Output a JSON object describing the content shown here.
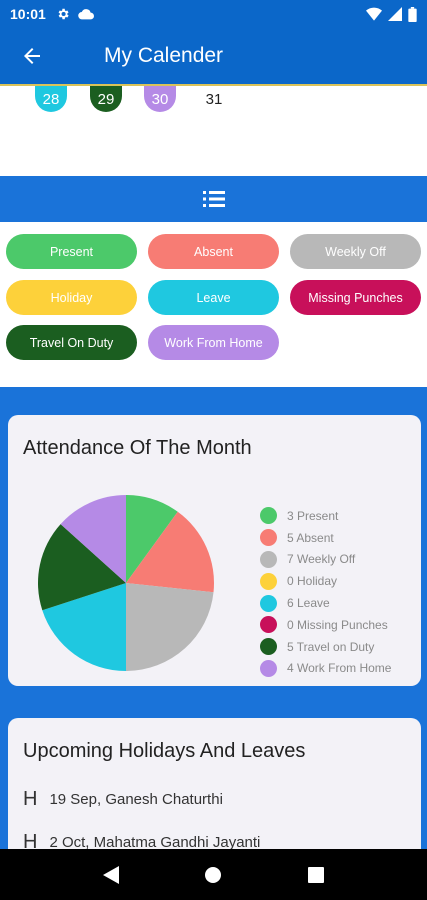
{
  "status": {
    "time": "10:01"
  },
  "header": {
    "title": "My Calender"
  },
  "calendar": {
    "days": [
      {
        "label": "28",
        "color": "#1fc8e0"
      },
      {
        "label": "29",
        "color": "#1b5e20"
      },
      {
        "label": "30",
        "color": "#b58ae6"
      },
      {
        "label": "31",
        "color": ""
      }
    ]
  },
  "legend": {
    "chips": [
      {
        "label": "Present",
        "color": "#4cc96a"
      },
      {
        "label": "Absent",
        "color": "#f77c74"
      },
      {
        "label": "Weekly Off",
        "color": "#b8b8b8"
      },
      {
        "label": "Holiday",
        "color": "#fdd13a"
      },
      {
        "label": "Leave",
        "color": "#1fc8e0"
      },
      {
        "label": "Missing Punches",
        "color": "#c8105a"
      },
      {
        "label": "Travel On Duty",
        "color": "#1b5e20"
      },
      {
        "label": "Work From Home",
        "color": "#b58ae6"
      }
    ]
  },
  "attendance": {
    "title": "Attendance Of The Month",
    "items": [
      {
        "label": "3 Present",
        "color": "#4cc96a"
      },
      {
        "label": "5 Absent",
        "color": "#f77c74"
      },
      {
        "label": "7 Weekly Off",
        "color": "#b8b8b8"
      },
      {
        "label": "0 Holiday",
        "color": "#fdd13a"
      },
      {
        "label": "6 Leave",
        "color": "#1fc8e0"
      },
      {
        "label": "0 Missing Punches",
        "color": "#c8105a"
      },
      {
        "label": "5 Travel on Duty",
        "color": "#1b5e20"
      },
      {
        "label": "4 Work From Home",
        "color": "#b58ae6"
      }
    ]
  },
  "chart_data": {
    "type": "pie",
    "categories": [
      "Present",
      "Absent",
      "Weekly Off",
      "Holiday",
      "Leave",
      "Missing Punches",
      "Travel on Duty",
      "Work From Home"
    ],
    "values": [
      3,
      5,
      7,
      0,
      6,
      0,
      5,
      4
    ],
    "colors": [
      "#4cc96a",
      "#f77c74",
      "#b8b8b8",
      "#fdd13a",
      "#1fc8e0",
      "#c8105a",
      "#1b5e20",
      "#b58ae6"
    ],
    "title": "Attendance Of The Month",
    "legend": "right"
  },
  "holidays": {
    "title": "Upcoming Holidays And Leaves",
    "items": [
      {
        "icon": "H",
        "text": "19 Sep,  Ganesh Chaturthi"
      },
      {
        "icon": "H",
        "text": "2 Oct,  Mahatma Gandhi Jayanti"
      }
    ]
  }
}
